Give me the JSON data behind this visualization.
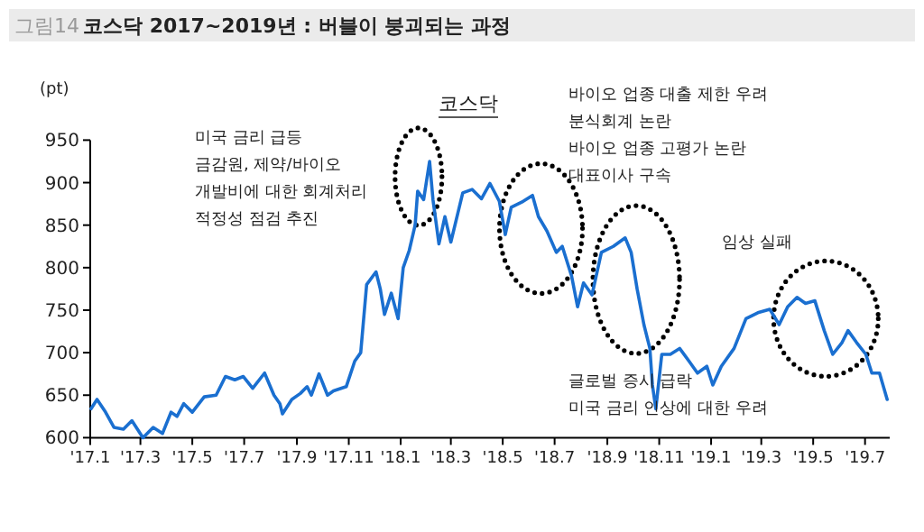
{
  "chart_data": {
    "type": "line",
    "title": "코스닥 2017~2019년 : 버블이 붕괴되는 과정",
    "ylabel": "(pt)",
    "annotations": [
      "그림14",
      "미국 금리 급등\n금감원, 제약/바이오\n개발비에 대한 회계처리\n적정성 점검 추진",
      "바이오 업종 대출 제한 우려\n분식회계 논란\n바이오 업종 고평가 논란\n대표이사 구속",
      "임상 실패",
      "글로벌 증시 급락\n미국 금리 인상에 대한 우려"
    ],
    "xlim": [
      "2017-01-01",
      "2019-07-30"
    ],
    "ylim": [
      600,
      950
    ],
    "xticks": [
      {
        "value": "2017-01-01",
        "label": "'17.1"
      },
      {
        "value": "2017-03-01",
        "label": "'17.3"
      },
      {
        "value": "2017-05-01",
        "label": "'17.5"
      },
      {
        "value": "2017-07-01",
        "label": "'17.7"
      },
      {
        "value": "2017-09-01",
        "label": "'17.9"
      },
      {
        "value": "2017-11-01",
        "label": "'17.11"
      },
      {
        "value": "2018-01-01",
        "label": "'18.1"
      },
      {
        "value": "2018-03-01",
        "label": "'18.3"
      },
      {
        "value": "2018-05-01",
        "label": "'18.5"
      },
      {
        "value": "2018-07-01",
        "label": "'18.7"
      },
      {
        "value": "2018-09-01",
        "label": "'18.9"
      },
      {
        "value": "2018-11-01",
        "label": "'18.11"
      },
      {
        "value": "2019-01-01",
        "label": "'19.1"
      },
      {
        "value": "2019-03-01",
        "label": "'19.3"
      },
      {
        "value": "2019-05-01",
        "label": "'19.5"
      },
      {
        "value": "2019-07-01",
        "label": "'19.7"
      }
    ],
    "yticks": [
      600,
      650,
      700,
      750,
      800,
      850,
      900,
      950
    ],
    "series": [
      {
        "name": "코스닥",
        "color": "#1a6fd0",
        "x": [
          "2017-01-02",
          "2017-01-09",
          "2017-01-19",
          "2017-01-29",
          "2017-02-09",
          "2017-02-19",
          "2017-03-04",
          "2017-03-16",
          "2017-03-27",
          "2017-04-06",
          "2017-04-13",
          "2017-04-21",
          "2017-05-01",
          "2017-05-15",
          "2017-05-29",
          "2017-06-09",
          "2017-06-20",
          "2017-06-30",
          "2017-07-11",
          "2017-07-25",
          "2017-08-05",
          "2017-08-12",
          "2017-08-15",
          "2017-08-26",
          "2017-09-05",
          "2017-09-13",
          "2017-09-18",
          "2017-09-27",
          "2017-10-07",
          "2017-10-14",
          "2017-10-29",
          "2017-11-08",
          "2017-11-15",
          "2017-11-22",
          "2017-12-03",
          "2017-12-08",
          "2017-12-13",
          "2017-12-21",
          "2017-12-29",
          "2018-01-04",
          "2018-01-11",
          "2018-01-18",
          "2018-01-21",
          "2018-01-28",
          "2018-02-04",
          "2018-02-08",
          "2018-02-15",
          "2018-02-22",
          "2018-03-01",
          "2018-03-15",
          "2018-03-26",
          "2018-04-06",
          "2018-04-16",
          "2018-04-27",
          "2018-05-04",
          "2018-05-11",
          "2018-05-25",
          "2018-06-05",
          "2018-06-12",
          "2018-06-22",
          "2018-07-03",
          "2018-07-10",
          "2018-07-21",
          "2018-07-28",
          "2018-08-04",
          "2018-08-14",
          "2018-08-25",
          "2018-09-08",
          "2018-09-22",
          "2018-09-29",
          "2018-10-06",
          "2018-10-14",
          "2018-10-21",
          "2018-10-24",
          "2018-10-28",
          "2018-11-04",
          "2018-11-14",
          "2018-11-25",
          "2018-12-06",
          "2018-12-16",
          "2018-12-27",
          "2019-01-03",
          "2019-01-13",
          "2019-01-28",
          "2019-02-11",
          "2019-02-25",
          "2019-03-11",
          "2019-03-22",
          "2019-04-01",
          "2019-04-12",
          "2019-04-22",
          "2019-05-03",
          "2019-05-14",
          "2019-05-24",
          "2019-06-04",
          "2019-06-11",
          "2019-06-21",
          "2019-07-02",
          "2019-07-09",
          "2019-07-18",
          "2019-07-27"
        ],
        "values": [
          634,
          645,
          630,
          612,
          610,
          620,
          600,
          612,
          605,
          630,
          625,
          640,
          630,
          648,
          650,
          672,
          668,
          672,
          658,
          676,
          650,
          640,
          628,
          645,
          652,
          660,
          650,
          675,
          650,
          655,
          660,
          690,
          700,
          780,
          795,
          775,
          745,
          770,
          740,
          800,
          820,
          850,
          890,
          880,
          925,
          880,
          828,
          860,
          830,
          888,
          892,
          881,
          899,
          878,
          839,
          871,
          878,
          885,
          860,
          843,
          818,
          825,
          790,
          754,
          782,
          768,
          818,
          825,
          835,
          818,
          775,
          733,
          705,
          662,
          634,
          698,
          698,
          705,
          690,
          676,
          684,
          662,
          684,
          705,
          740,
          747,
          751,
          733,
          754,
          765,
          758,
          761,
          726,
          698,
          712,
          726,
          712,
          698,
          676,
          676,
          645
        ]
      }
    ]
  }
}
